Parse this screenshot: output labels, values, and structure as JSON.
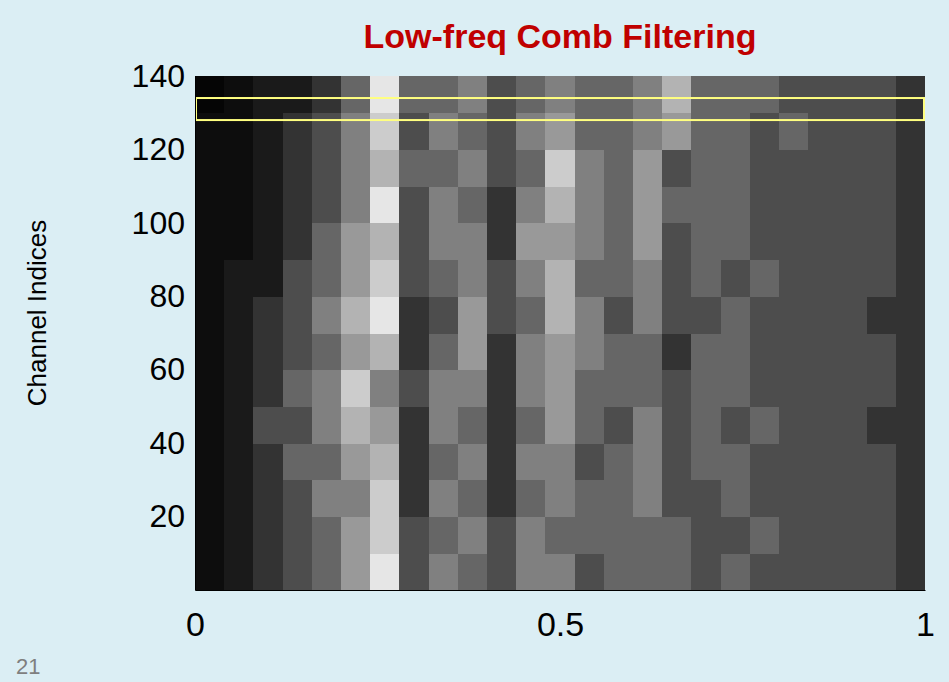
{
  "chart_data": {
    "type": "heatmap",
    "title": "Low-freq Comb Filtering",
    "y_label": "Channel Indices",
    "xlim": [
      0,
      1
    ],
    "xticks": [
      0,
      0.5,
      1
    ],
    "ylim": [
      0,
      140
    ],
    "yticks": [
      20,
      40,
      60,
      80,
      100,
      120,
      140
    ],
    "zlim": [
      0,
      1
    ],
    "x": [
      0.02,
      0.06,
      0.1,
      0.14,
      0.18,
      0.22,
      0.26,
      0.3,
      0.34,
      0.38,
      0.42,
      0.46,
      0.5,
      0.54,
      0.58,
      0.62,
      0.66,
      0.7,
      0.74,
      0.78,
      0.82,
      0.86,
      0.9,
      0.94,
      0.98
    ],
    "y": [
      5,
      15,
      25,
      35,
      45,
      55,
      65,
      75,
      85,
      95,
      105,
      115,
      125,
      135
    ],
    "values": [
      [
        0.05,
        0.1,
        0.2,
        0.3,
        0.4,
        0.6,
        0.9,
        0.3,
        0.5,
        0.4,
        0.3,
        0.5,
        0.5,
        0.3,
        0.4,
        0.4,
        0.4,
        0.3,
        0.4,
        0.3,
        0.3,
        0.3,
        0.3,
        0.3,
        0.2
      ],
      [
        0.05,
        0.1,
        0.2,
        0.3,
        0.4,
        0.6,
        0.8,
        0.3,
        0.4,
        0.5,
        0.3,
        0.5,
        0.4,
        0.4,
        0.4,
        0.4,
        0.4,
        0.3,
        0.3,
        0.4,
        0.3,
        0.3,
        0.3,
        0.3,
        0.2
      ],
      [
        0.05,
        0.1,
        0.2,
        0.3,
        0.5,
        0.5,
        0.8,
        0.2,
        0.5,
        0.4,
        0.2,
        0.4,
        0.5,
        0.4,
        0.4,
        0.5,
        0.3,
        0.3,
        0.4,
        0.3,
        0.3,
        0.3,
        0.3,
        0.3,
        0.2
      ],
      [
        0.05,
        0.1,
        0.2,
        0.4,
        0.4,
        0.6,
        0.7,
        0.2,
        0.4,
        0.5,
        0.2,
        0.5,
        0.5,
        0.3,
        0.4,
        0.5,
        0.3,
        0.4,
        0.4,
        0.3,
        0.3,
        0.3,
        0.3,
        0.3,
        0.2
      ],
      [
        0.05,
        0.1,
        0.3,
        0.3,
        0.5,
        0.7,
        0.6,
        0.2,
        0.5,
        0.4,
        0.2,
        0.4,
        0.6,
        0.4,
        0.3,
        0.5,
        0.3,
        0.4,
        0.3,
        0.4,
        0.3,
        0.3,
        0.3,
        0.2,
        0.2
      ],
      [
        0.05,
        0.1,
        0.2,
        0.4,
        0.5,
        0.8,
        0.5,
        0.3,
        0.5,
        0.5,
        0.2,
        0.5,
        0.6,
        0.4,
        0.4,
        0.4,
        0.3,
        0.4,
        0.4,
        0.3,
        0.3,
        0.3,
        0.3,
        0.3,
        0.2
      ],
      [
        0.05,
        0.1,
        0.2,
        0.3,
        0.4,
        0.6,
        0.7,
        0.2,
        0.4,
        0.6,
        0.2,
        0.5,
        0.6,
        0.5,
        0.4,
        0.4,
        0.2,
        0.4,
        0.4,
        0.3,
        0.3,
        0.3,
        0.3,
        0.3,
        0.2
      ],
      [
        0.05,
        0.1,
        0.2,
        0.3,
        0.5,
        0.7,
        0.9,
        0.2,
        0.3,
        0.6,
        0.3,
        0.4,
        0.7,
        0.5,
        0.3,
        0.5,
        0.3,
        0.3,
        0.4,
        0.3,
        0.3,
        0.3,
        0.3,
        0.2,
        0.2
      ],
      [
        0.05,
        0.1,
        0.1,
        0.3,
        0.4,
        0.6,
        0.8,
        0.3,
        0.4,
        0.5,
        0.3,
        0.5,
        0.7,
        0.4,
        0.4,
        0.5,
        0.3,
        0.4,
        0.3,
        0.4,
        0.3,
        0.3,
        0.3,
        0.3,
        0.2
      ],
      [
        0.05,
        0.05,
        0.1,
        0.2,
        0.4,
        0.6,
        0.7,
        0.3,
        0.5,
        0.5,
        0.2,
        0.6,
        0.6,
        0.5,
        0.4,
        0.6,
        0.3,
        0.4,
        0.4,
        0.3,
        0.3,
        0.3,
        0.3,
        0.3,
        0.2
      ],
      [
        0.05,
        0.05,
        0.1,
        0.2,
        0.3,
        0.5,
        0.9,
        0.3,
        0.5,
        0.4,
        0.2,
        0.5,
        0.7,
        0.5,
        0.4,
        0.6,
        0.4,
        0.4,
        0.4,
        0.3,
        0.3,
        0.3,
        0.3,
        0.3,
        0.2
      ],
      [
        0.05,
        0.05,
        0.1,
        0.2,
        0.3,
        0.5,
        0.7,
        0.4,
        0.4,
        0.5,
        0.3,
        0.4,
        0.8,
        0.5,
        0.4,
        0.6,
        0.3,
        0.4,
        0.4,
        0.3,
        0.3,
        0.3,
        0.3,
        0.3,
        0.2
      ],
      [
        0.05,
        0.05,
        0.1,
        0.2,
        0.3,
        0.5,
        0.8,
        0.3,
        0.5,
        0.4,
        0.3,
        0.5,
        0.6,
        0.4,
        0.4,
        0.5,
        0.6,
        0.4,
        0.4,
        0.3,
        0.4,
        0.3,
        0.3,
        0.3,
        0.2
      ],
      [
        0.02,
        0.05,
        0.1,
        0.1,
        0.2,
        0.4,
        0.9,
        0.4,
        0.4,
        0.5,
        0.3,
        0.4,
        0.5,
        0.4,
        0.4,
        0.5,
        0.7,
        0.4,
        0.4,
        0.4,
        0.3,
        0.3,
        0.3,
        0.3,
        0.2
      ]
    ],
    "highlight": {
      "y": [
        128,
        134
      ],
      "color": "#ffff80"
    }
  },
  "page": {
    "number": "21"
  }
}
